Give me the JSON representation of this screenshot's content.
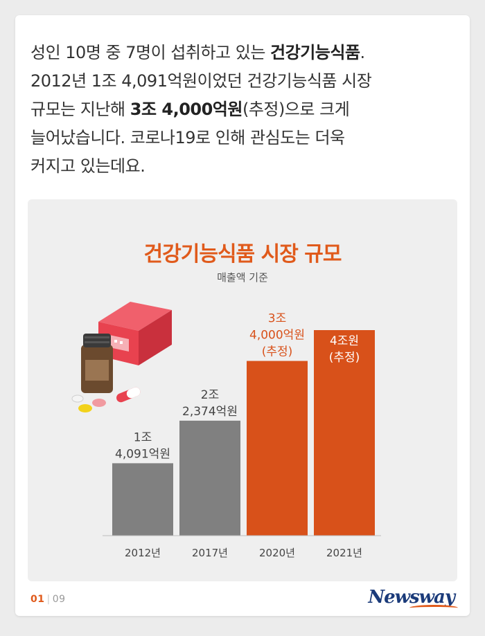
{
  "intro": {
    "line1_a": "성인 10명 중 7명이 섭취하고 있는 ",
    "line1_b": "건강기능식품",
    "line1_c": ".",
    "line2": "2012년 1조 4,091억원이었던 건강기능식품 시장",
    "line3_a": "규모는 지난해 ",
    "line3_b": "3조 4,000억원",
    "line3_c": "(추정)으로 크게",
    "line4": "늘어났습니다. 코로나19로 인해 관심도는 더욱",
    "line5": "커지고 있는데요."
  },
  "chart_data": {
    "type": "bar",
    "title": "건강기능식품 시장 규모",
    "subtitle": "매출액 기준",
    "unit": "억원",
    "categories": [
      "2012년",
      "2017년",
      "2020년",
      "2021년"
    ],
    "values": [
      14091,
      22374,
      34000,
      40000
    ],
    "value_labels": [
      [
        "1조",
        "4,091억원"
      ],
      [
        "2조",
        "2,374억원"
      ],
      [
        "3조",
        "4,000억원",
        "(추정)"
      ],
      [
        "4조원",
        "(추정)"
      ]
    ],
    "colors": [
      "#808080",
      "#808080",
      "#d8511a",
      "#d8511a"
    ],
    "label_colors": [
      "#444444",
      "#444444",
      "#d8511a",
      "#ffffff"
    ],
    "ylim": [
      0,
      40000
    ]
  },
  "footer": {
    "page_current": "01",
    "page_separator": "|",
    "page_total": "09",
    "brand": "Newsway"
  }
}
